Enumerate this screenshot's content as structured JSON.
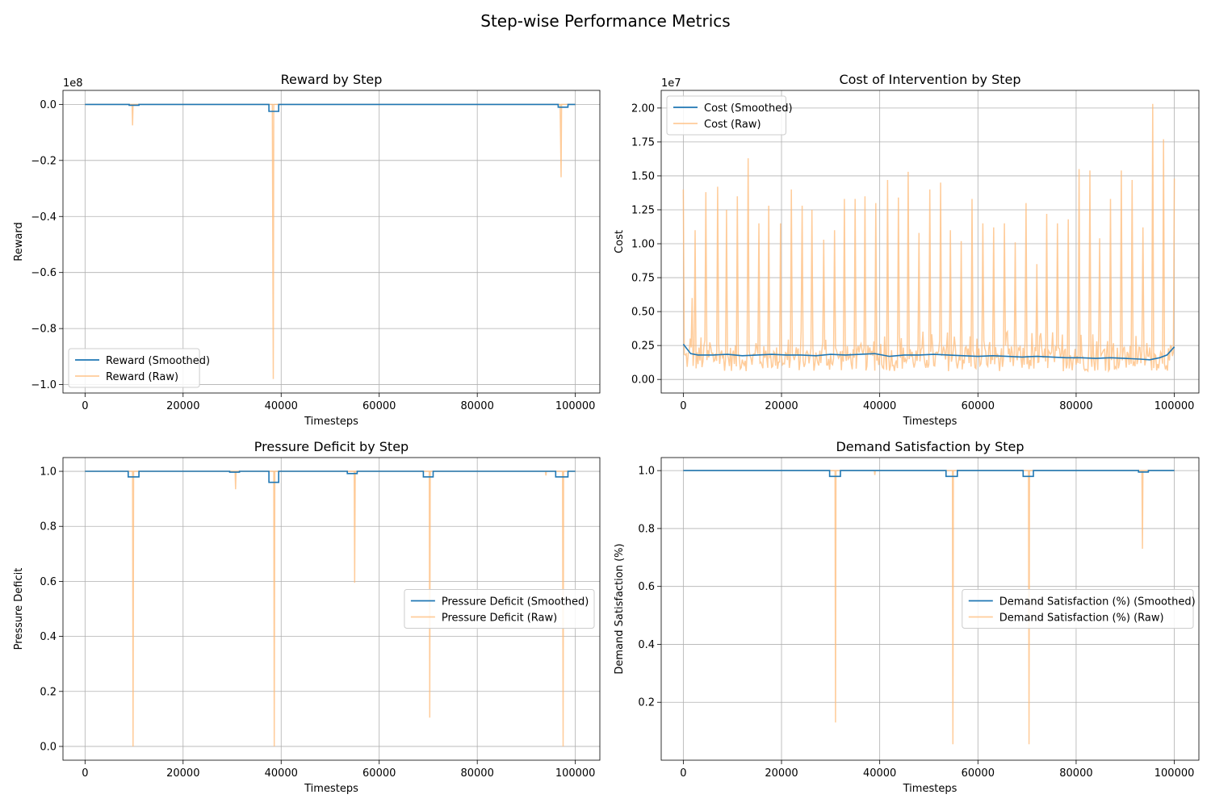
{
  "figure": {
    "title": "Step-wise Performance Metrics"
  },
  "colors": {
    "smoothed": "#1f77b4",
    "raw": "#ffbb78",
    "grid": "#b0b0b0"
  },
  "chart_data": [
    {
      "type": "line",
      "title": "Reward by Step",
      "xlabel": "Timesteps",
      "ylabel": "Reward",
      "offset_text": "1e8",
      "xlim": [
        -4500,
        105000
      ],
      "ylim": [
        -1.03,
        0.05
      ],
      "x_ticks": [
        0,
        20000,
        40000,
        60000,
        80000,
        100000
      ],
      "x_tick_labels": [
        "0",
        "20000",
        "40000",
        "60000",
        "80000",
        "100000"
      ],
      "y_ticks": [
        0.0,
        -0.2,
        -0.4,
        -0.6,
        -0.8,
        -1.0
      ],
      "y_tick_labels": [
        "0.0",
        "−0.2",
        "−0.4",
        "−0.6",
        "−0.8",
        "−1.0"
      ],
      "grid": true,
      "legend_position": "lower left",
      "legend": [
        "Reward (Smoothed)",
        "Reward (Raw)"
      ],
      "series": [
        {
          "name": "Reward (Smoothed)",
          "role": "smoothed",
          "x": [
            0,
            9000,
            9000,
            11000,
            11000,
            37500,
            37500,
            39500,
            39500,
            96500,
            96500,
            98500,
            98500,
            100000
          ],
          "y": [
            0,
            0,
            -0.003,
            -0.003,
            0,
            0,
            -0.025,
            -0.025,
            0,
            0,
            -0.01,
            -0.01,
            0,
            0
          ]
        },
        {
          "name": "Reward (Raw)",
          "role": "raw",
          "x": [
            0,
            9600,
            9700,
            9800,
            38200,
            38300,
            38400,
            38500,
            96900,
            97100,
            97200,
            100000
          ],
          "y": [
            0,
            0,
            -0.075,
            0,
            0,
            -0.5,
            -0.98,
            0,
            0,
            -0.26,
            0,
            0
          ]
        }
      ]
    },
    {
      "type": "line",
      "title": "Cost of Intervention by Step",
      "xlabel": "Timesteps",
      "ylabel": "Cost",
      "offset_text": "1e7",
      "xlim": [
        -4500,
        105000
      ],
      "ylim": [
        -0.1,
        2.13
      ],
      "x_ticks": [
        0,
        20000,
        40000,
        60000,
        80000,
        100000
      ],
      "x_tick_labels": [
        "0",
        "20000",
        "40000",
        "60000",
        "80000",
        "100000"
      ],
      "y_ticks": [
        0.0,
        0.25,
        0.5,
        0.75,
        1.0,
        1.25,
        1.5,
        1.75,
        2.0
      ],
      "y_tick_labels": [
        "0.00",
        "0.25",
        "0.50",
        "0.75",
        "1.00",
        "1.25",
        "1.50",
        "1.75",
        "2.00"
      ],
      "grid": true,
      "legend_position": "upper left",
      "legend": [
        "Cost (Smoothed)",
        "Cost (Raw)"
      ],
      "peaks": [
        [
          0,
          1.4
        ],
        [
          1800,
          0.6
        ],
        [
          2400,
          1.1
        ],
        [
          4500,
          1.38
        ],
        [
          6900,
          1.42
        ],
        [
          8800,
          1.25
        ],
        [
          11000,
          1.35
        ],
        [
          13200,
          1.63
        ],
        [
          15300,
          1.15
        ],
        [
          17400,
          1.28
        ],
        [
          19700,
          1.15
        ],
        [
          22000,
          1.4
        ],
        [
          24200,
          1.28
        ],
        [
          26200,
          1.25
        ],
        [
          28500,
          1.03
        ],
        [
          30700,
          1.1
        ],
        [
          32800,
          1.33
        ],
        [
          35000,
          1.33
        ],
        [
          37000,
          1.35
        ],
        [
          39200,
          1.3
        ],
        [
          41500,
          1.47
        ],
        [
          43700,
          1.34
        ],
        [
          45800,
          1.53
        ],
        [
          48000,
          1.08
        ],
        [
          50200,
          1.4
        ],
        [
          52300,
          1.45
        ],
        [
          54400,
          1.1
        ],
        [
          56500,
          1.02
        ],
        [
          58800,
          1.33
        ],
        [
          61000,
          1.15
        ],
        [
          63200,
          1.12
        ],
        [
          65300,
          1.15
        ],
        [
          67500,
          1.01
        ],
        [
          69700,
          1.3
        ],
        [
          71900,
          0.85
        ],
        [
          74000,
          1.22
        ],
        [
          76200,
          1.15
        ],
        [
          78300,
          1.18
        ],
        [
          80500,
          1.55
        ],
        [
          82700,
          1.54
        ],
        [
          84800,
          1.04
        ],
        [
          87000,
          1.33
        ],
        [
          89200,
          1.54
        ],
        [
          91300,
          1.47
        ],
        [
          93500,
          1.12
        ],
        [
          95600,
          2.03
        ],
        [
          97800,
          1.77
        ],
        [
          100000,
          1.48
        ]
      ],
      "noise_range": [
        0.06,
        0.25
      ],
      "series": [
        {
          "name": "Cost (Smoothed)",
          "role": "smoothed",
          "x": [
            0,
            1500,
            3000,
            6000,
            9000,
            12000,
            15000,
            18000,
            21000,
            24000,
            27000,
            30000,
            33000,
            36000,
            39000,
            42000,
            45000,
            48000,
            51000,
            54000,
            57000,
            60000,
            63000,
            66000,
            69000,
            72000,
            75000,
            78000,
            81000,
            84000,
            87000,
            90000,
            93000,
            95000,
            97000,
            98500,
            100000
          ],
          "y": [
            0.26,
            0.19,
            0.18,
            0.18,
            0.185,
            0.175,
            0.18,
            0.185,
            0.18,
            0.18,
            0.175,
            0.185,
            0.18,
            0.185,
            0.19,
            0.17,
            0.18,
            0.18,
            0.185,
            0.18,
            0.175,
            0.17,
            0.175,
            0.17,
            0.165,
            0.17,
            0.165,
            0.16,
            0.16,
            0.155,
            0.16,
            0.155,
            0.15,
            0.145,
            0.16,
            0.18,
            0.24
          ]
        },
        {
          "name": "Cost (Raw)",
          "role": "raw",
          "x": [],
          "y": []
        }
      ]
    },
    {
      "type": "line",
      "title": "Pressure Deficit by Step",
      "xlabel": "Timesteps",
      "ylabel": "Pressure Deficit",
      "xlim": [
        -4500,
        105000
      ],
      "ylim": [
        -0.05,
        1.05
      ],
      "x_ticks": [
        0,
        20000,
        40000,
        60000,
        80000,
        100000
      ],
      "x_tick_labels": [
        "0",
        "20000",
        "40000",
        "60000",
        "80000",
        "100000"
      ],
      "y_ticks": [
        0.0,
        0.2,
        0.4,
        0.6,
        0.8,
        1.0
      ],
      "y_tick_labels": [
        "0.0",
        "0.2",
        "0.4",
        "0.6",
        "0.8",
        "1.0"
      ],
      "grid": true,
      "legend_position": "center right",
      "legend": [
        "Pressure Deficit (Smoothed)",
        "Pressure Deficit (Raw)"
      ],
      "series": [
        {
          "name": "Pressure Deficit (Smoothed)",
          "role": "smoothed",
          "x": [
            0,
            8800,
            8800,
            11000,
            11000,
            29500,
            29500,
            31500,
            31500,
            37500,
            37500,
            39500,
            39500,
            53500,
            53500,
            55500,
            55500,
            69000,
            69000,
            71000,
            71000,
            96000,
            96000,
            98500,
            98500,
            100000
          ],
          "y": [
            1.0,
            1.0,
            0.98,
            0.98,
            1.0,
            1.0,
            0.997,
            0.997,
            1.0,
            1.0,
            0.96,
            0.96,
            1.0,
            1.0,
            0.992,
            0.992,
            1.0,
            1.0,
            0.98,
            0.98,
            1.0,
            1.0,
            0.98,
            0.98,
            1.0,
            1.0
          ]
        },
        {
          "name": "Pressure Deficit (Raw)",
          "role": "raw",
          "x": [
            0,
            9700,
            9800,
            9900,
            30600,
            30700,
            30800,
            38500,
            38600,
            38700,
            54900,
            55000,
            55100,
            70200,
            70300,
            70400,
            93900,
            94000,
            94100,
            97400,
            97500,
            97600,
            100000
          ],
          "y": [
            1.0,
            1.0,
            0.0,
            1.0,
            1.0,
            0.935,
            1.0,
            1.0,
            0.0,
            1.0,
            1.0,
            0.595,
            1.0,
            1.0,
            0.105,
            1.0,
            1.0,
            0.985,
            1.0,
            1.0,
            0.0,
            1.0,
            1.0
          ]
        }
      ]
    },
    {
      "type": "line",
      "title": "Demand Satisfaction by Step",
      "xlabel": "Timesteps",
      "ylabel": "Demand Satisfaction (%)",
      "xlim": [
        -4500,
        105000
      ],
      "ylim": [
        0.0,
        1.045
      ],
      "x_ticks": [
        0,
        20000,
        40000,
        60000,
        80000,
        100000
      ],
      "x_tick_labels": [
        "0",
        "20000",
        "40000",
        "60000",
        "80000",
        "100000"
      ],
      "y_ticks": [
        0.2,
        0.4,
        0.6,
        0.8,
        1.0
      ],
      "y_tick_labels": [
        "0.2",
        "0.4",
        "0.6",
        "0.8",
        "1.0"
      ],
      "grid": true,
      "legend_position": "center right",
      "legend": [
        "Demand Satisfaction (%) (Smoothed)",
        "Demand Satisfaction (%) (Raw)"
      ],
      "series": [
        {
          "name": "Demand Satisfaction (%) (Smoothed)",
          "role": "smoothed",
          "x": [
            0,
            29800,
            29800,
            32000,
            32000,
            53500,
            53500,
            55800,
            55800,
            69200,
            69200,
            71300,
            71300,
            92700,
            92700,
            94700,
            94700,
            100000
          ],
          "y": [
            1.0,
            1.0,
            0.98,
            0.98,
            1.0,
            1.0,
            0.98,
            0.98,
            1.0,
            1.0,
            0.98,
            0.98,
            1.0,
            1.0,
            0.995,
            0.995,
            1.0,
            1.0
          ]
        },
        {
          "name": "Demand Satisfaction (%) (Raw)",
          "role": "raw",
          "x": [
            0,
            30900,
            31000,
            31100,
            38900,
            39000,
            39100,
            54800,
            54900,
            55000,
            70300,
            70400,
            70500,
            93400,
            93500,
            93600,
            100000
          ],
          "y": [
            1.0,
            1.0,
            0.13,
            1.0,
            1.0,
            0.985,
            1.0,
            1.0,
            0.055,
            1.0,
            1.0,
            0.055,
            1.0,
            1.0,
            0.73,
            1.0,
            1.0
          ]
        }
      ]
    }
  ]
}
